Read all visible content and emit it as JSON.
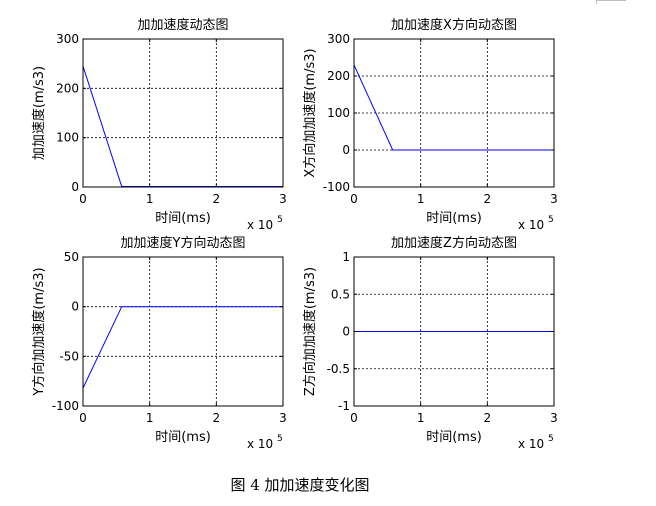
{
  "figure": {
    "caption": "图 4  加加速度变化图"
  },
  "colors": {
    "line": "#0000ff",
    "axis": "#000000",
    "grid": "#000000",
    "background": "#ffffff"
  },
  "chart_data": [
    {
      "type": "line",
      "title": "加加速度动态图",
      "xlabel": "时间(ms)",
      "ylabel": "加加速度(m/s3)",
      "x_exponent": "x 10",
      "x_exponent_power": "5",
      "xlim": [
        0,
        3
      ],
      "ylim": [
        0,
        300
      ],
      "xticks": [
        0,
        1,
        2,
        3
      ],
      "yticks": [
        0,
        100,
        200,
        300
      ],
      "grid": true,
      "series": [
        {
          "x": [
            0,
            0.58,
            3
          ],
          "y": [
            245,
            1,
            1
          ]
        }
      ]
    },
    {
      "type": "line",
      "title": "加加速度X方向动态图",
      "xlabel": "时间(ms)",
      "ylabel": "X方向加加速度(m/s3)",
      "x_exponent": "x 10",
      "x_exponent_power": "5",
      "xlim": [
        0,
        3
      ],
      "ylim": [
        -100,
        300
      ],
      "xticks": [
        0,
        1,
        2,
        3
      ],
      "yticks": [
        -100,
        0,
        100,
        200,
        300
      ],
      "grid": true,
      "series": [
        {
          "x": [
            0,
            0.58,
            3
          ],
          "y": [
            230,
            0,
            0
          ]
        }
      ]
    },
    {
      "type": "line",
      "title": "加加速度Y方向动态图",
      "xlabel": "时间(ms)",
      "ylabel": "Y方向加加速度(m/s3)",
      "x_exponent": "x 10",
      "x_exponent_power": "5",
      "xlim": [
        0,
        3
      ],
      "ylim": [
        -100,
        50
      ],
      "xticks": [
        0,
        1,
        2,
        3
      ],
      "yticks": [
        -100,
        -50,
        0,
        50
      ],
      "grid": true,
      "series": [
        {
          "x": [
            0,
            0.58,
            1.4,
            2.8,
            3
          ],
          "y": [
            -82,
            0,
            0,
            0,
            0
          ]
        }
      ]
    },
    {
      "type": "line",
      "title": "加加速度Z方向动态图",
      "xlabel": "时间(ms)",
      "ylabel": "Z方向加加速度(m/s3)",
      "x_exponent": "x 10",
      "x_exponent_power": "5",
      "xlim": [
        0,
        3
      ],
      "ylim": [
        -1,
        1
      ],
      "xticks": [
        0,
        1,
        2,
        3
      ],
      "yticks": [
        -1,
        -0.5,
        0,
        0.5,
        1
      ],
      "grid": true,
      "series": [
        {
          "x": [
            0,
            3
          ],
          "y": [
            0,
            0
          ]
        }
      ]
    }
  ]
}
